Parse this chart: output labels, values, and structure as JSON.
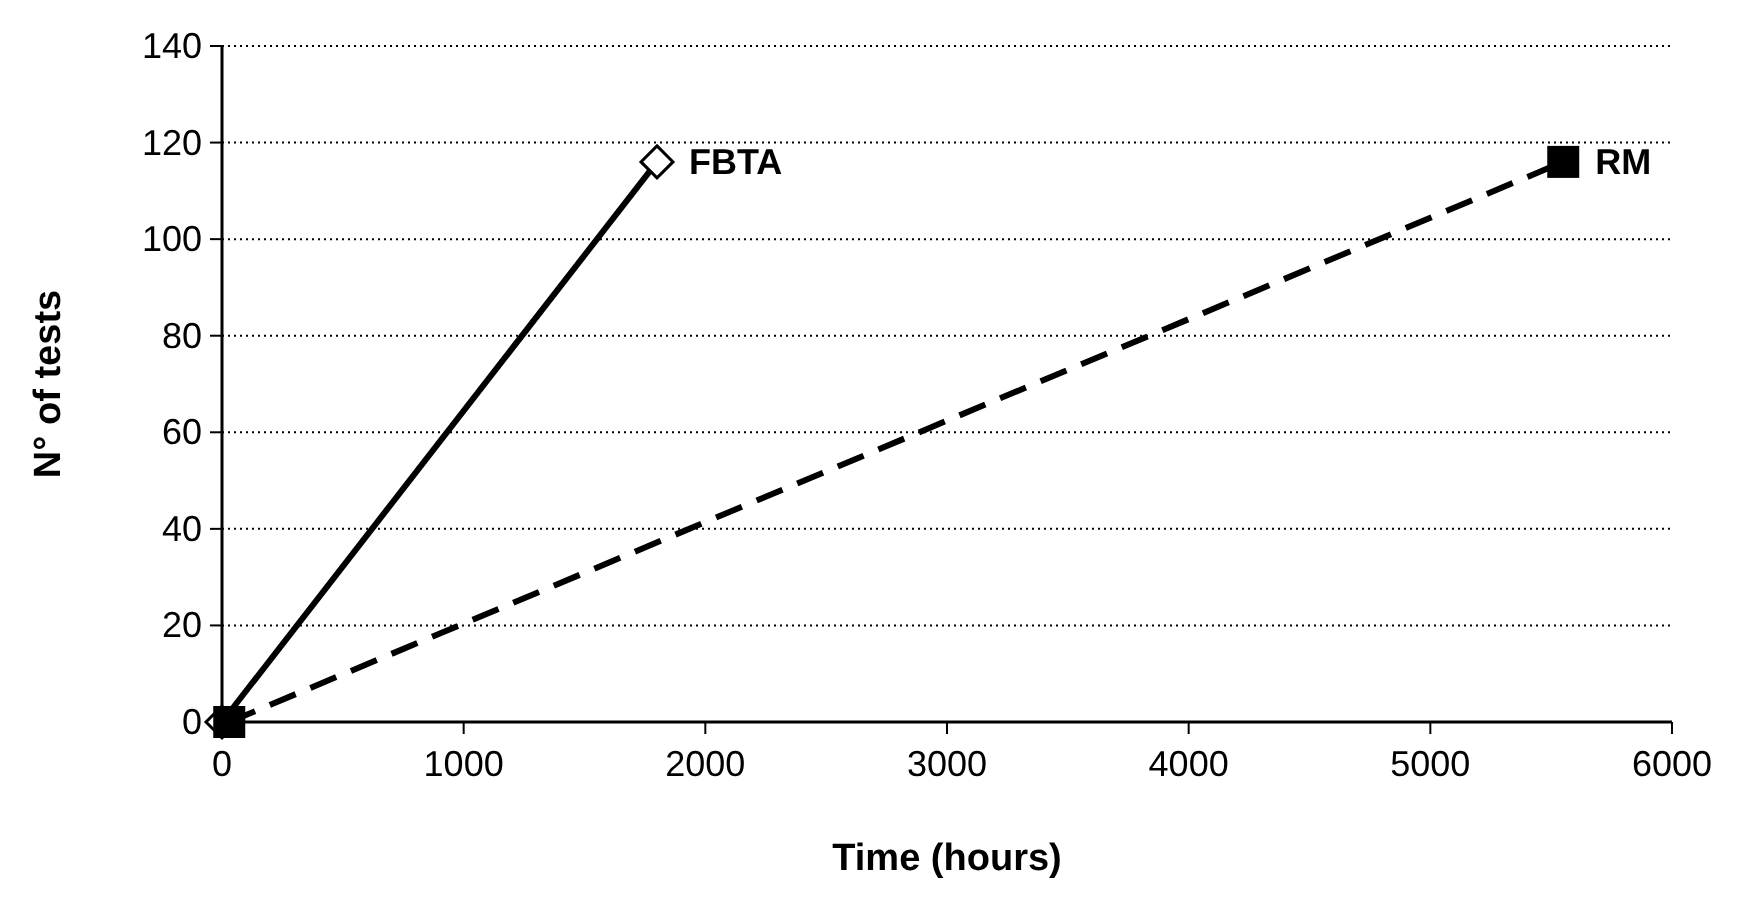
{
  "chart_data": {
    "type": "line",
    "xlabel": "Time (hours)",
    "ylabel": "N° of tests",
    "xlim": [
      0,
      6000
    ],
    "xticks": [
      0,
      1000,
      2000,
      3000,
      4000,
      5000,
      6000
    ],
    "ylim": [
      0,
      140
    ],
    "yticks": [
      0,
      20,
      40,
      60,
      80,
      100,
      120,
      140
    ],
    "grid": "y",
    "legend": false,
    "series": [
      {
        "name": "FBTA",
        "color": "#000000",
        "x": [
          0,
          1800
        ],
        "values": [
          0,
          116
        ],
        "marker": "diamond",
        "line_style": "solid"
      },
      {
        "name": "RM",
        "color": "#000000",
        "x": [
          30,
          5550
        ],
        "values": [
          0,
          116
        ],
        "marker": "square",
        "line_style": "dashed"
      }
    ]
  }
}
